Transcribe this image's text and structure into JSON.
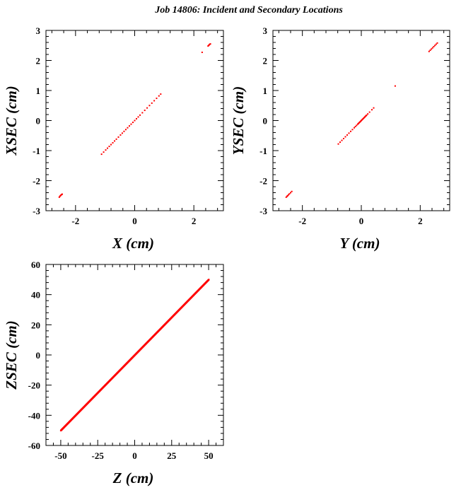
{
  "title": "Job 14806: Incident and Secondary Locations",
  "colors": {
    "points": "#ff0000",
    "axes": "#000000",
    "background": "#ffffff"
  },
  "chart_data": [
    {
      "type": "scatter",
      "xlabel": "X (cm)",
      "ylabel": "XSEC (cm)",
      "xlim": [
        -3,
        3
      ],
      "ylim": [
        -3,
        3
      ],
      "xticks": [
        -2,
        0,
        2
      ],
      "yticks": [
        -3,
        -2,
        -1,
        0,
        1,
        2,
        3
      ],
      "grid": false,
      "points": [
        [
          -2.55,
          -2.55
        ],
        [
          -2.53,
          -2.52
        ],
        [
          -2.51,
          -2.5
        ],
        [
          -2.49,
          -2.48
        ],
        [
          -2.47,
          -2.46
        ],
        [
          -2.45,
          -2.45
        ],
        [
          -1.12,
          -1.12
        ],
        [
          -1.05,
          -1.05
        ],
        [
          -0.98,
          -0.98
        ],
        [
          -0.92,
          -0.92
        ],
        [
          -0.86,
          -0.86
        ],
        [
          -0.8,
          -0.8
        ],
        [
          -0.74,
          -0.74
        ],
        [
          -0.68,
          -0.68
        ],
        [
          -0.62,
          -0.62
        ],
        [
          -0.55,
          -0.55
        ],
        [
          -0.48,
          -0.48
        ],
        [
          -0.42,
          -0.42
        ],
        [
          -0.36,
          -0.36
        ],
        [
          -0.3,
          -0.3
        ],
        [
          -0.24,
          -0.24
        ],
        [
          -0.18,
          -0.18
        ],
        [
          -0.12,
          -0.12
        ],
        [
          -0.06,
          -0.06
        ],
        [
          0.0,
          0.0
        ],
        [
          0.06,
          0.06
        ],
        [
          0.12,
          0.12
        ],
        [
          0.18,
          0.18
        ],
        [
          0.26,
          0.26
        ],
        [
          0.34,
          0.34
        ],
        [
          0.42,
          0.42
        ],
        [
          0.5,
          0.5
        ],
        [
          0.58,
          0.58
        ],
        [
          0.66,
          0.66
        ],
        [
          0.74,
          0.74
        ],
        [
          0.82,
          0.82
        ],
        [
          0.88,
          0.88
        ],
        [
          2.28,
          2.27
        ],
        [
          2.48,
          2.48
        ],
        [
          2.5,
          2.5
        ],
        [
          2.52,
          2.52
        ],
        [
          2.54,
          2.54
        ],
        [
          2.56,
          2.55
        ]
      ]
    },
    {
      "type": "scatter",
      "xlabel": "Y (cm)",
      "ylabel": "YSEC (cm)",
      "xlim": [
        -3,
        3
      ],
      "ylim": [
        -3,
        3
      ],
      "xticks": [
        -2,
        0,
        2
      ],
      "yticks": [
        -3,
        -2,
        -1,
        0,
        1,
        2,
        3
      ],
      "grid": false,
      "points": [
        [
          -2.55,
          -2.55
        ],
        [
          -2.52,
          -2.52
        ],
        [
          -2.5,
          -2.5
        ],
        [
          -2.47,
          -2.47
        ],
        [
          -2.44,
          -2.44
        ],
        [
          -2.4,
          -2.4
        ],
        [
          -2.36,
          -2.36
        ],
        [
          -0.78,
          -0.78
        ],
        [
          -0.72,
          -0.72
        ],
        [
          -0.66,
          -0.66
        ],
        [
          -0.6,
          -0.6
        ],
        [
          -0.54,
          -0.54
        ],
        [
          -0.48,
          -0.48
        ],
        [
          -0.42,
          -0.42
        ],
        [
          -0.36,
          -0.36
        ],
        [
          -0.3,
          -0.3
        ],
        [
          -0.24,
          -0.24
        ],
        [
          -0.2,
          -0.2
        ],
        [
          -0.16,
          -0.16
        ],
        [
          -0.12,
          -0.12
        ],
        [
          -0.1,
          -0.1
        ],
        [
          -0.08,
          -0.08
        ],
        [
          -0.06,
          -0.06
        ],
        [
          -0.04,
          -0.04
        ],
        [
          -0.02,
          -0.02
        ],
        [
          0.0,
          0.0
        ],
        [
          0.02,
          0.02
        ],
        [
          0.04,
          0.04
        ],
        [
          0.06,
          0.06
        ],
        [
          0.08,
          0.08
        ],
        [
          0.1,
          0.1
        ],
        [
          0.12,
          0.12
        ],
        [
          0.14,
          0.14
        ],
        [
          0.16,
          0.16
        ],
        [
          0.18,
          0.18
        ],
        [
          0.22,
          0.22
        ],
        [
          0.28,
          0.28
        ],
        [
          0.36,
          0.36
        ],
        [
          0.42,
          0.42
        ],
        [
          1.15,
          1.15
        ],
        [
          2.3,
          2.3
        ],
        [
          2.34,
          2.34
        ],
        [
          2.38,
          2.38
        ],
        [
          2.42,
          2.42
        ],
        [
          2.46,
          2.46
        ],
        [
          2.5,
          2.5
        ],
        [
          2.54,
          2.54
        ],
        [
          2.58,
          2.58
        ]
      ]
    },
    {
      "type": "scatter",
      "xlabel": "Z (cm)",
      "ylabel": "ZSEC (cm)",
      "xlim": [
        -60,
        60
      ],
      "ylim": [
        -60,
        60
      ],
      "xticks": [
        -50,
        -25,
        0,
        25,
        50
      ],
      "yticks": [
        -60,
        -40,
        -20,
        0,
        20,
        40,
        60
      ],
      "grid": false,
      "points_line": {
        "from": -50,
        "to": 50,
        "count": 400
      }
    }
  ]
}
